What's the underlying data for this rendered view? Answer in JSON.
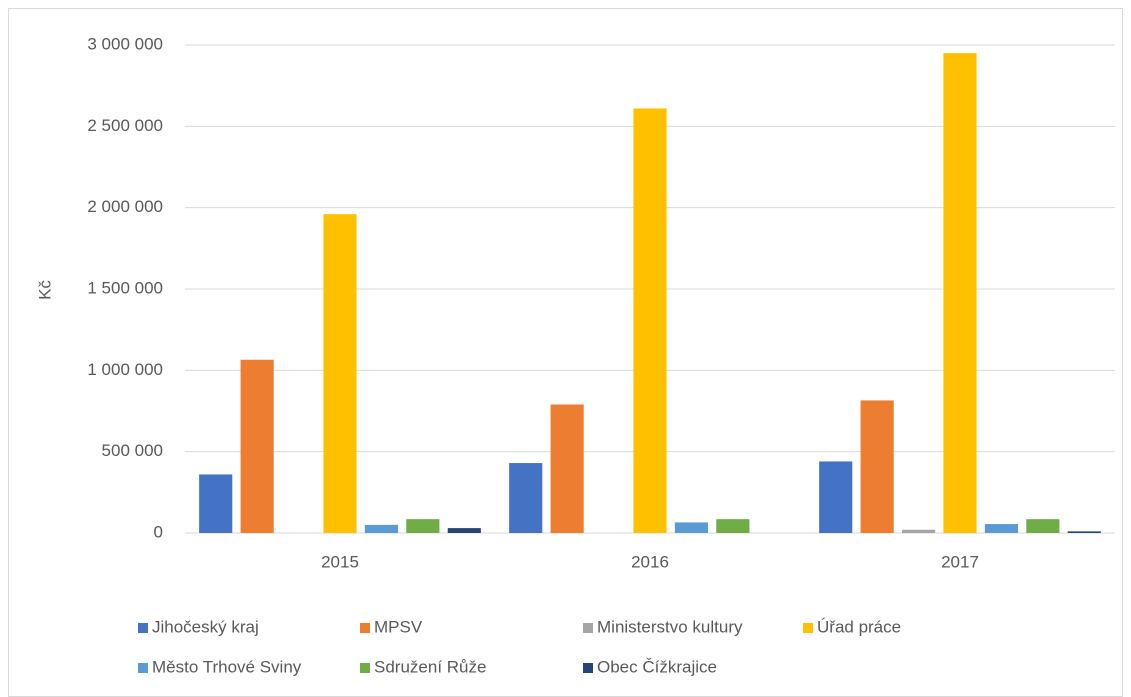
{
  "chart_data": {
    "type": "bar",
    "y_label": "Kč",
    "categories": [
      "2015",
      "2016",
      "2017"
    ],
    "series": [
      {
        "name": "Jihočeský kraj",
        "color": "#4472c4",
        "values": [
          360000,
          430000,
          440000
        ]
      },
      {
        "name": "MPSV",
        "color": "#ed7d31",
        "values": [
          1065000,
          790000,
          815000
        ]
      },
      {
        "name": "Ministerstvo kultury",
        "color": "#a5a5a5",
        "values": [
          0,
          0,
          20000
        ]
      },
      {
        "name": "Úřad práce",
        "color": "#ffc000",
        "values": [
          1960000,
          2610000,
          2950000
        ]
      },
      {
        "name": "Město Trhové Sviny",
        "color": "#5b9bd5",
        "values": [
          50000,
          65000,
          55000
        ]
      },
      {
        "name": "Sdružení Růže",
        "color": "#70ad47",
        "values": [
          85000,
          85000,
          85000
        ]
      },
      {
        "name": "Obec Čížkrajice",
        "color": "#264478",
        "values": [
          30000,
          0,
          10000
        ]
      }
    ],
    "ylim": [
      0,
      3000000
    ],
    "yticks": [
      0,
      {
        "value": 500000,
        "label": "500 000"
      },
      {
        "value": 1000000,
        "label": "1 000 000"
      },
      {
        "value": 1500000,
        "label": "1 500 000"
      },
      {
        "value": 2000000,
        "label": "2 000 000"
      },
      {
        "value": 2500000,
        "label": "2 500 000"
      },
      {
        "value": 3000000,
        "label": "3 000 000"
      }
    ],
    "grid": true
  }
}
